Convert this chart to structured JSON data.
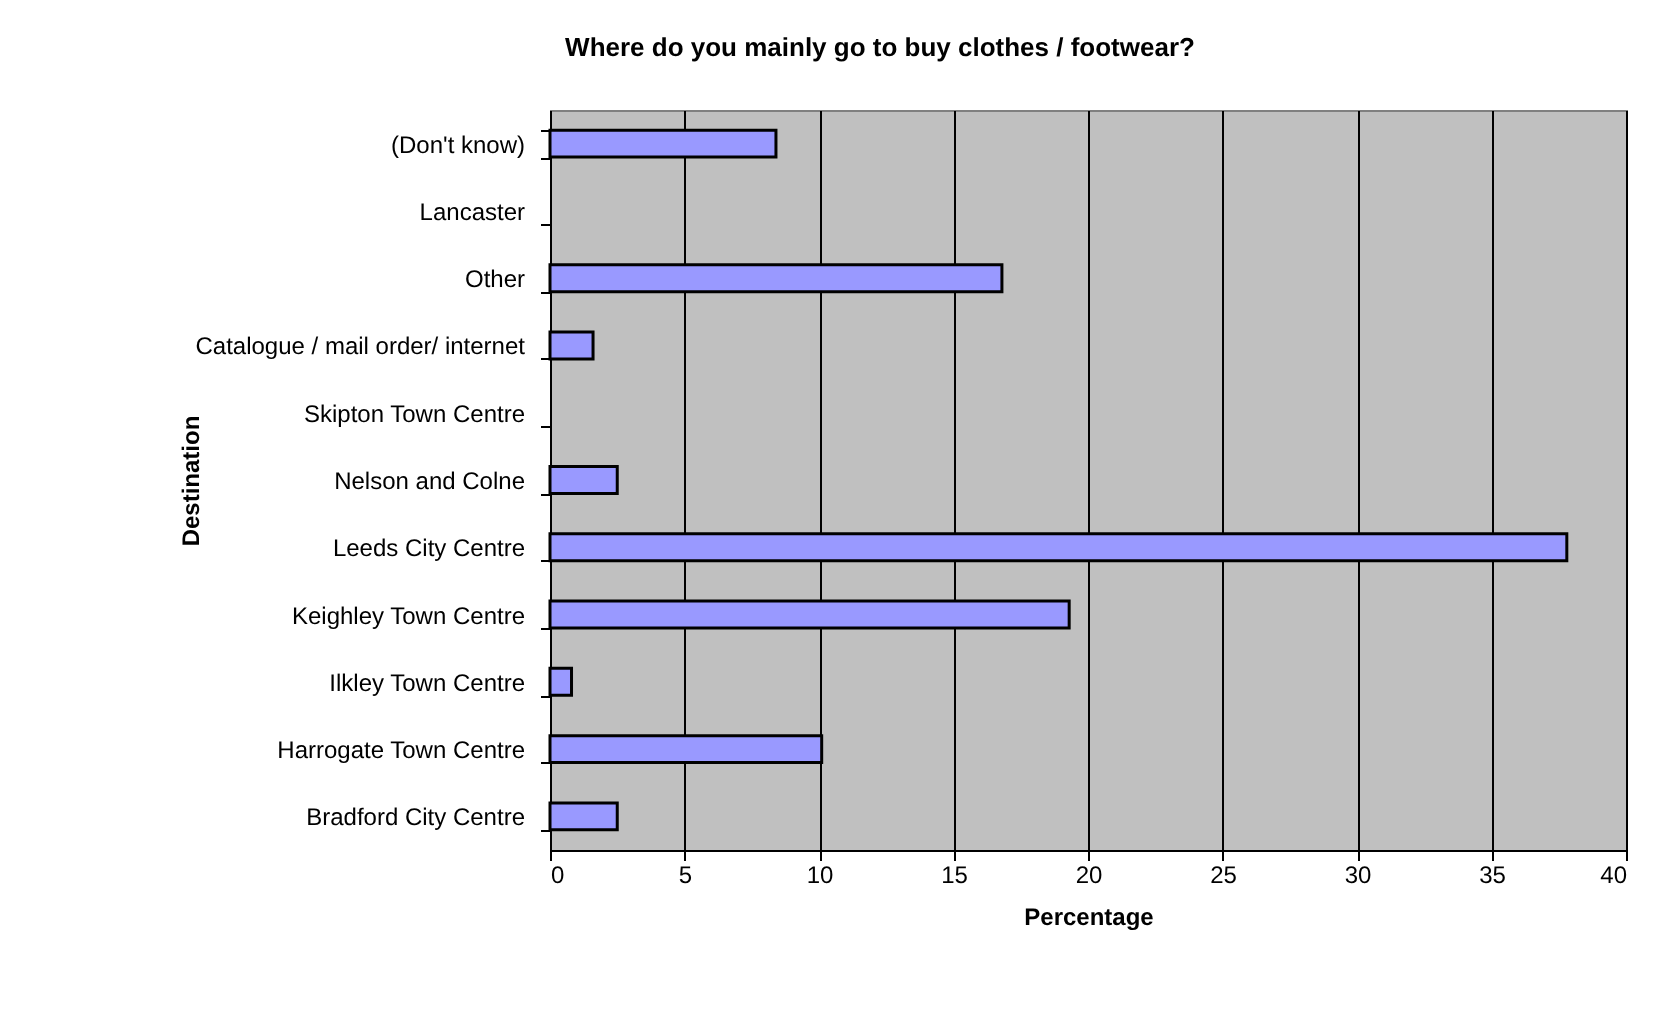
{
  "chart_data": {
    "type": "bar",
    "orientation": "horizontal",
    "title": "Where do you mainly go to buy clothes / footwear?",
    "xlabel": "Percentage",
    "ylabel": "Destination",
    "categories": [
      "(Don't know)",
      "Lancaster",
      "Other",
      "Catalogue / mail order/ internet",
      "Skipton Town Centre",
      "Nelson and Colne",
      "Leeds City Centre",
      "Keighley Town Centre",
      "Ilkley Town Centre",
      "Harrogate Town Centre",
      "Bradford City Centre"
    ],
    "values": [
      8.4,
      0,
      16.8,
      1.6,
      0,
      2.5,
      37.8,
      19.3,
      0.8,
      10.1,
      2.5
    ],
    "color": "#9999ff",
    "xlim": [
      0,
      40
    ],
    "xticks": [
      0,
      5,
      10,
      15,
      20,
      25,
      30,
      35,
      40
    ],
    "grid": "x"
  }
}
